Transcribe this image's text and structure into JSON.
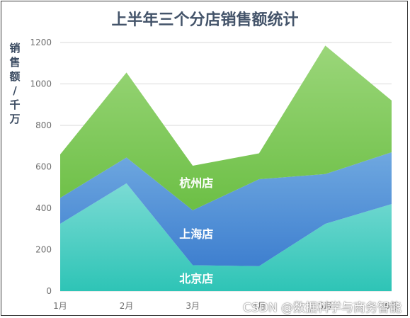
{
  "chart_data": {
    "type": "area",
    "stacked": true,
    "title": "上半年三个分店销售额统计",
    "ylabel": "销售额/千万",
    "xlabel": "",
    "categories": [
      "1月",
      "2月",
      "3月",
      "4月",
      "5月",
      "6月"
    ],
    "ylim": [
      0,
      1200
    ],
    "yticks": [
      0,
      200,
      400,
      600,
      800,
      1000,
      1200
    ],
    "grid": true,
    "series": [
      {
        "name": "北京店",
        "values": [
          325,
          520,
          125,
          120,
          325,
          420
        ],
        "color_top": "#7bdbd4",
        "color_bottom": "#2ec4b6"
      },
      {
        "name": "上海店",
        "values": [
          125,
          125,
          265,
          420,
          240,
          250
        ],
        "color_top": "#6fa8e0",
        "color_bottom": "#3e7fcf"
      },
      {
        "name": "杭州店",
        "values": [
          210,
          410,
          215,
          125,
          620,
          250
        ],
        "color_top": "#9bd67a",
        "color_bottom": "#6cbf45"
      }
    ]
  },
  "watermark": "CSDN @数据科学与商务智能"
}
